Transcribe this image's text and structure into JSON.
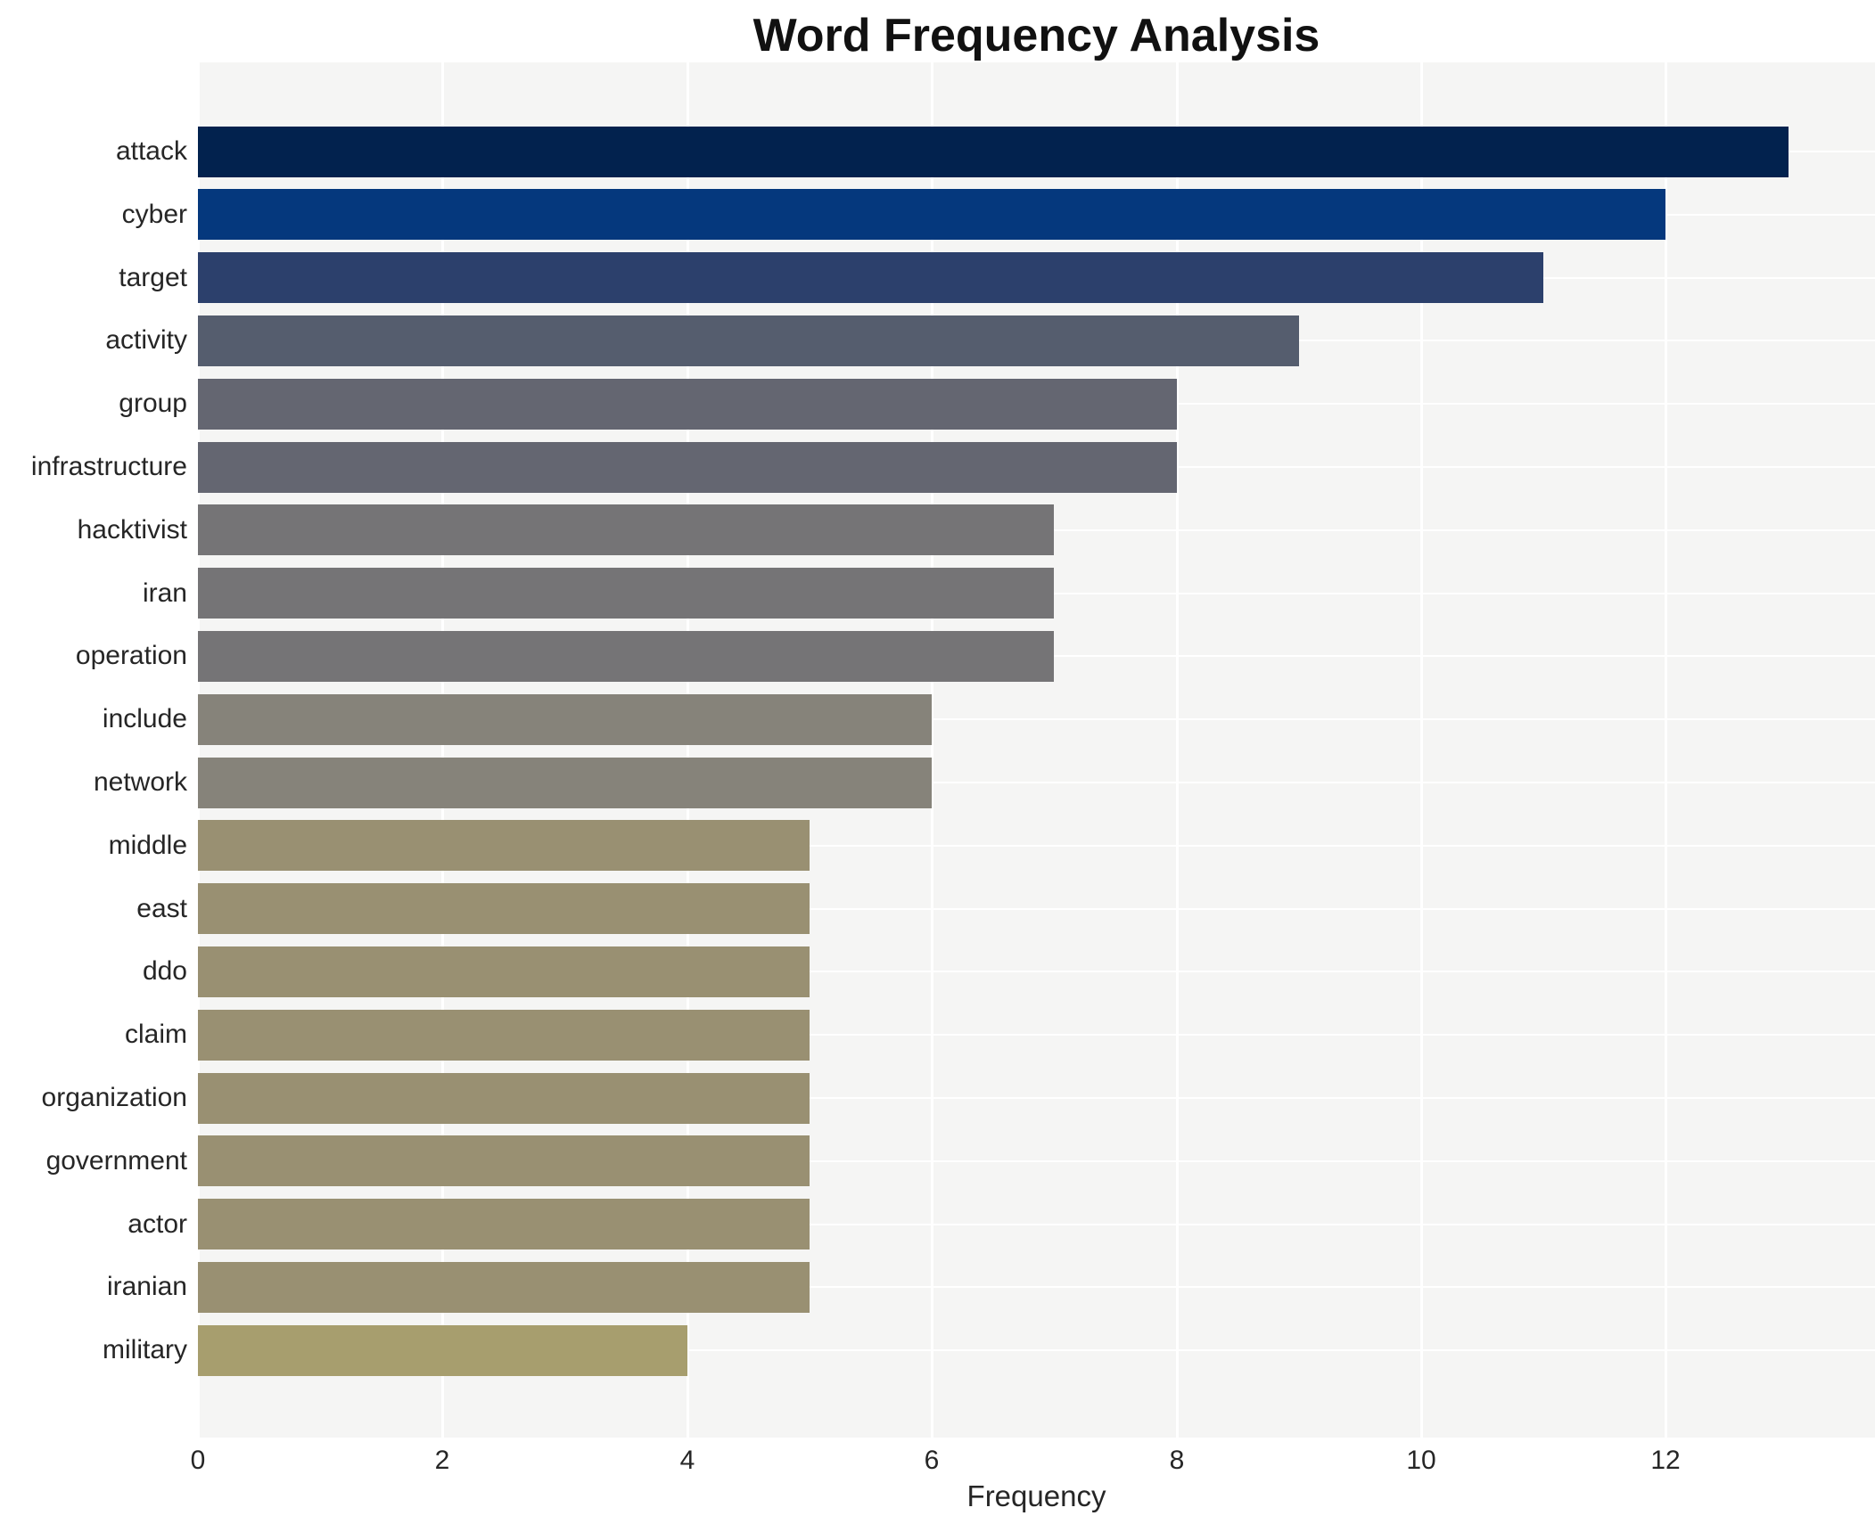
{
  "chart_data": {
    "type": "bar",
    "orientation": "horizontal",
    "title": "Word Frequency Analysis",
    "xlabel": "Frequency",
    "ylabel": "",
    "categories": [
      "attack",
      "cyber",
      "target",
      "activity",
      "group",
      "infrastructure",
      "hacktivist",
      "iran",
      "operation",
      "include",
      "network",
      "middle",
      "east",
      "ddo",
      "claim",
      "organization",
      "government",
      "actor",
      "iranian",
      "military"
    ],
    "values": [
      13,
      12,
      11,
      9,
      8,
      8,
      7,
      7,
      7,
      6,
      6,
      5,
      5,
      5,
      5,
      5,
      5,
      5,
      5,
      4
    ],
    "bar_colors": [
      "#02224e",
      "#05387d",
      "#2c406c",
      "#555d6e",
      "#646671",
      "#646671",
      "#757476",
      "#757476",
      "#757476",
      "#86837a",
      "#86837a",
      "#999072",
      "#999072",
      "#999072",
      "#999072",
      "#999072",
      "#999072",
      "#999072",
      "#999072",
      "#a79e6e"
    ],
    "xticks": [
      0,
      2,
      4,
      6,
      8,
      10,
      12
    ],
    "xlim": [
      0,
      13.71
    ],
    "grid": true,
    "legend": false,
    "plot_bg": "#f5f5f4",
    "grid_color": "#ffffff",
    "text_color": "#262626"
  }
}
